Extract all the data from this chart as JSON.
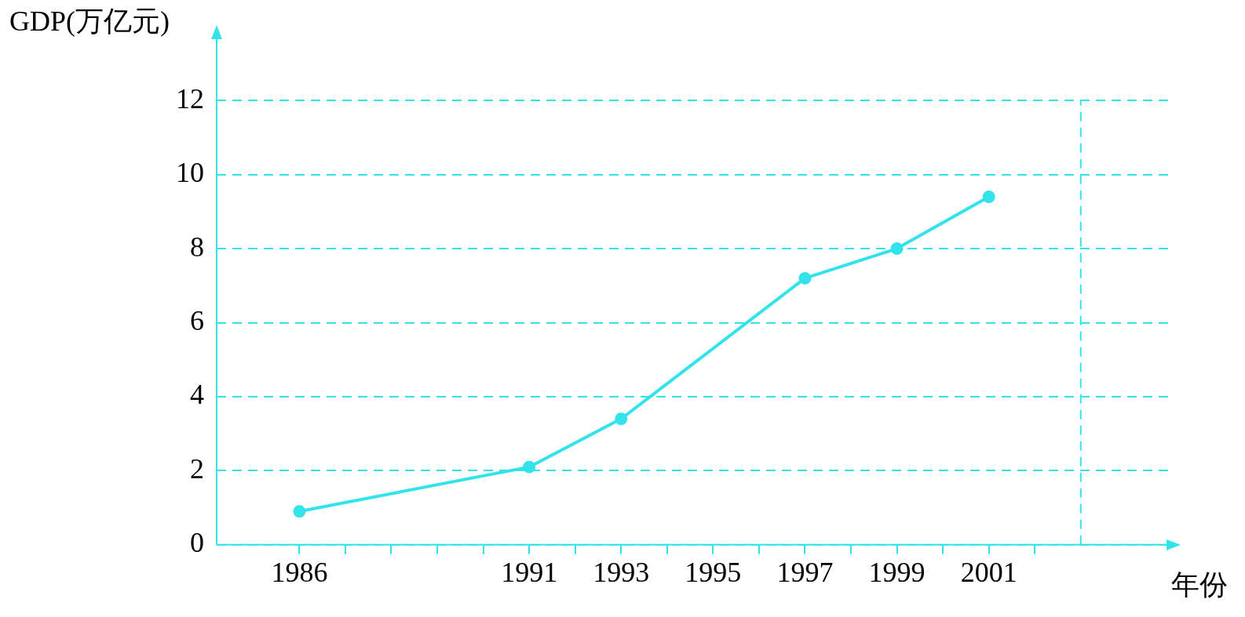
{
  "chart_data": {
    "type": "line",
    "xlabel": "年份",
    "ylabel": "GDP(万亿元)",
    "x": [
      1986,
      1991,
      1993,
      1997,
      1999,
      2001
    ],
    "series": [
      {
        "color": "#33e3ec",
        "values": [
          0.9,
          2.1,
          3.4,
          7.2,
          8.0,
          9.4
        ]
      }
    ],
    "xlim": [
      1984.2,
      2004.9
    ],
    "xticks": [
      1986,
      {
        "value": 1987,
        "label": null
      },
      {
        "value": 1988,
        "label": null
      },
      {
        "value": 1989,
        "label": null
      },
      {
        "value": 1990,
        "label": null
      },
      1991,
      {
        "value": 1992,
        "label": null
      },
      1993,
      {
        "value": 1994,
        "label": null
      },
      1995,
      {
        "value": 1996,
        "label": null
      },
      1997,
      {
        "value": 1998,
        "label": null
      },
      1999,
      {
        "value": 2000,
        "label": null
      },
      2001,
      {
        "value": 2002,
        "label": null
      }
    ],
    "ylim": [
      0,
      13.7
    ],
    "yticks": [
      0,
      2,
      4,
      6,
      8,
      10,
      12
    ],
    "ref_lines": [
      {
        "axis": "x",
        "value": 2003,
        "label": null,
        "color": "#33e3ec",
        "line_style": "dashed"
      }
    ],
    "grid": "y",
    "legend": false,
    "marker": "circle",
    "line_style": "solid"
  }
}
